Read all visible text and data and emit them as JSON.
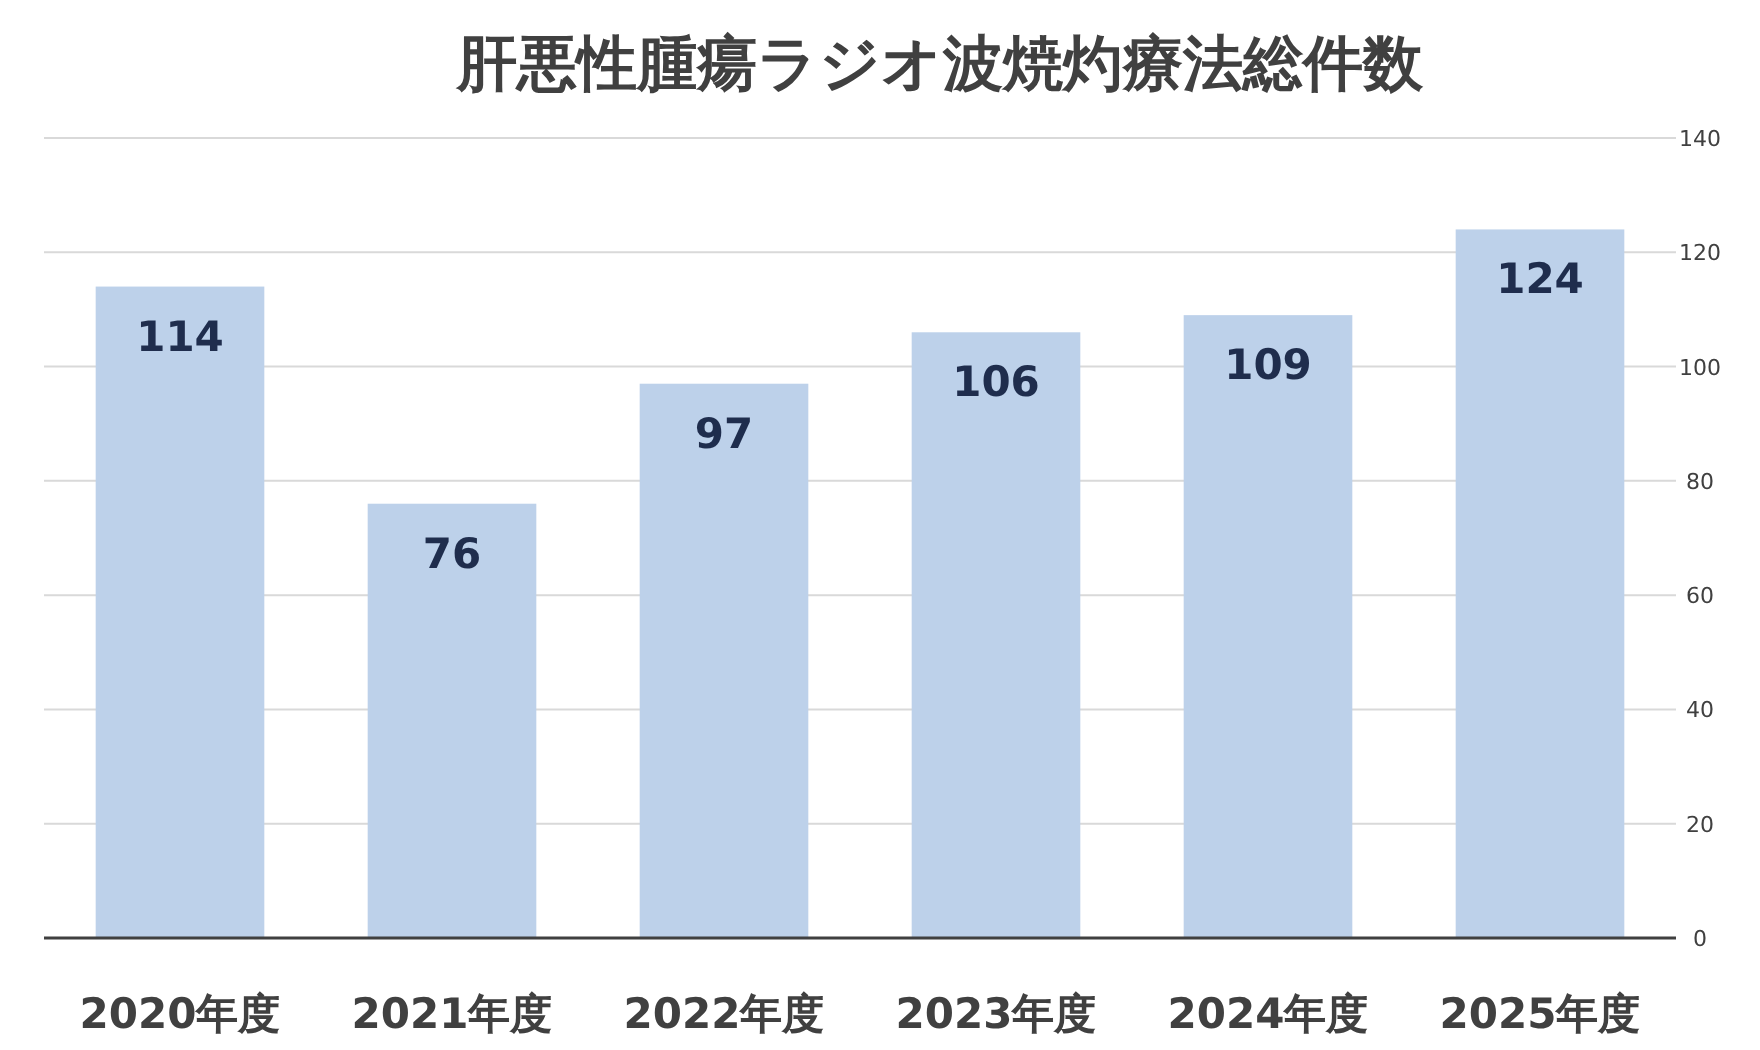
{
  "chart_data": {
    "type": "bar",
    "title": "肝悪性腫瘍ラジオ波焼灼療法総件数",
    "categories": [
      "2020年度",
      "2021年度",
      "2022年度",
      "2023年度",
      "2024年度",
      "2025年度"
    ],
    "values": [
      114,
      76,
      97,
      106,
      109,
      124
    ],
    "color": "#bdd1ea",
    "ylim": [
      0,
      140
    ],
    "yticks": [
      0,
      20,
      40,
      60,
      80,
      100,
      120,
      140
    ],
    "grid": "y",
    "data_labels": true
  }
}
